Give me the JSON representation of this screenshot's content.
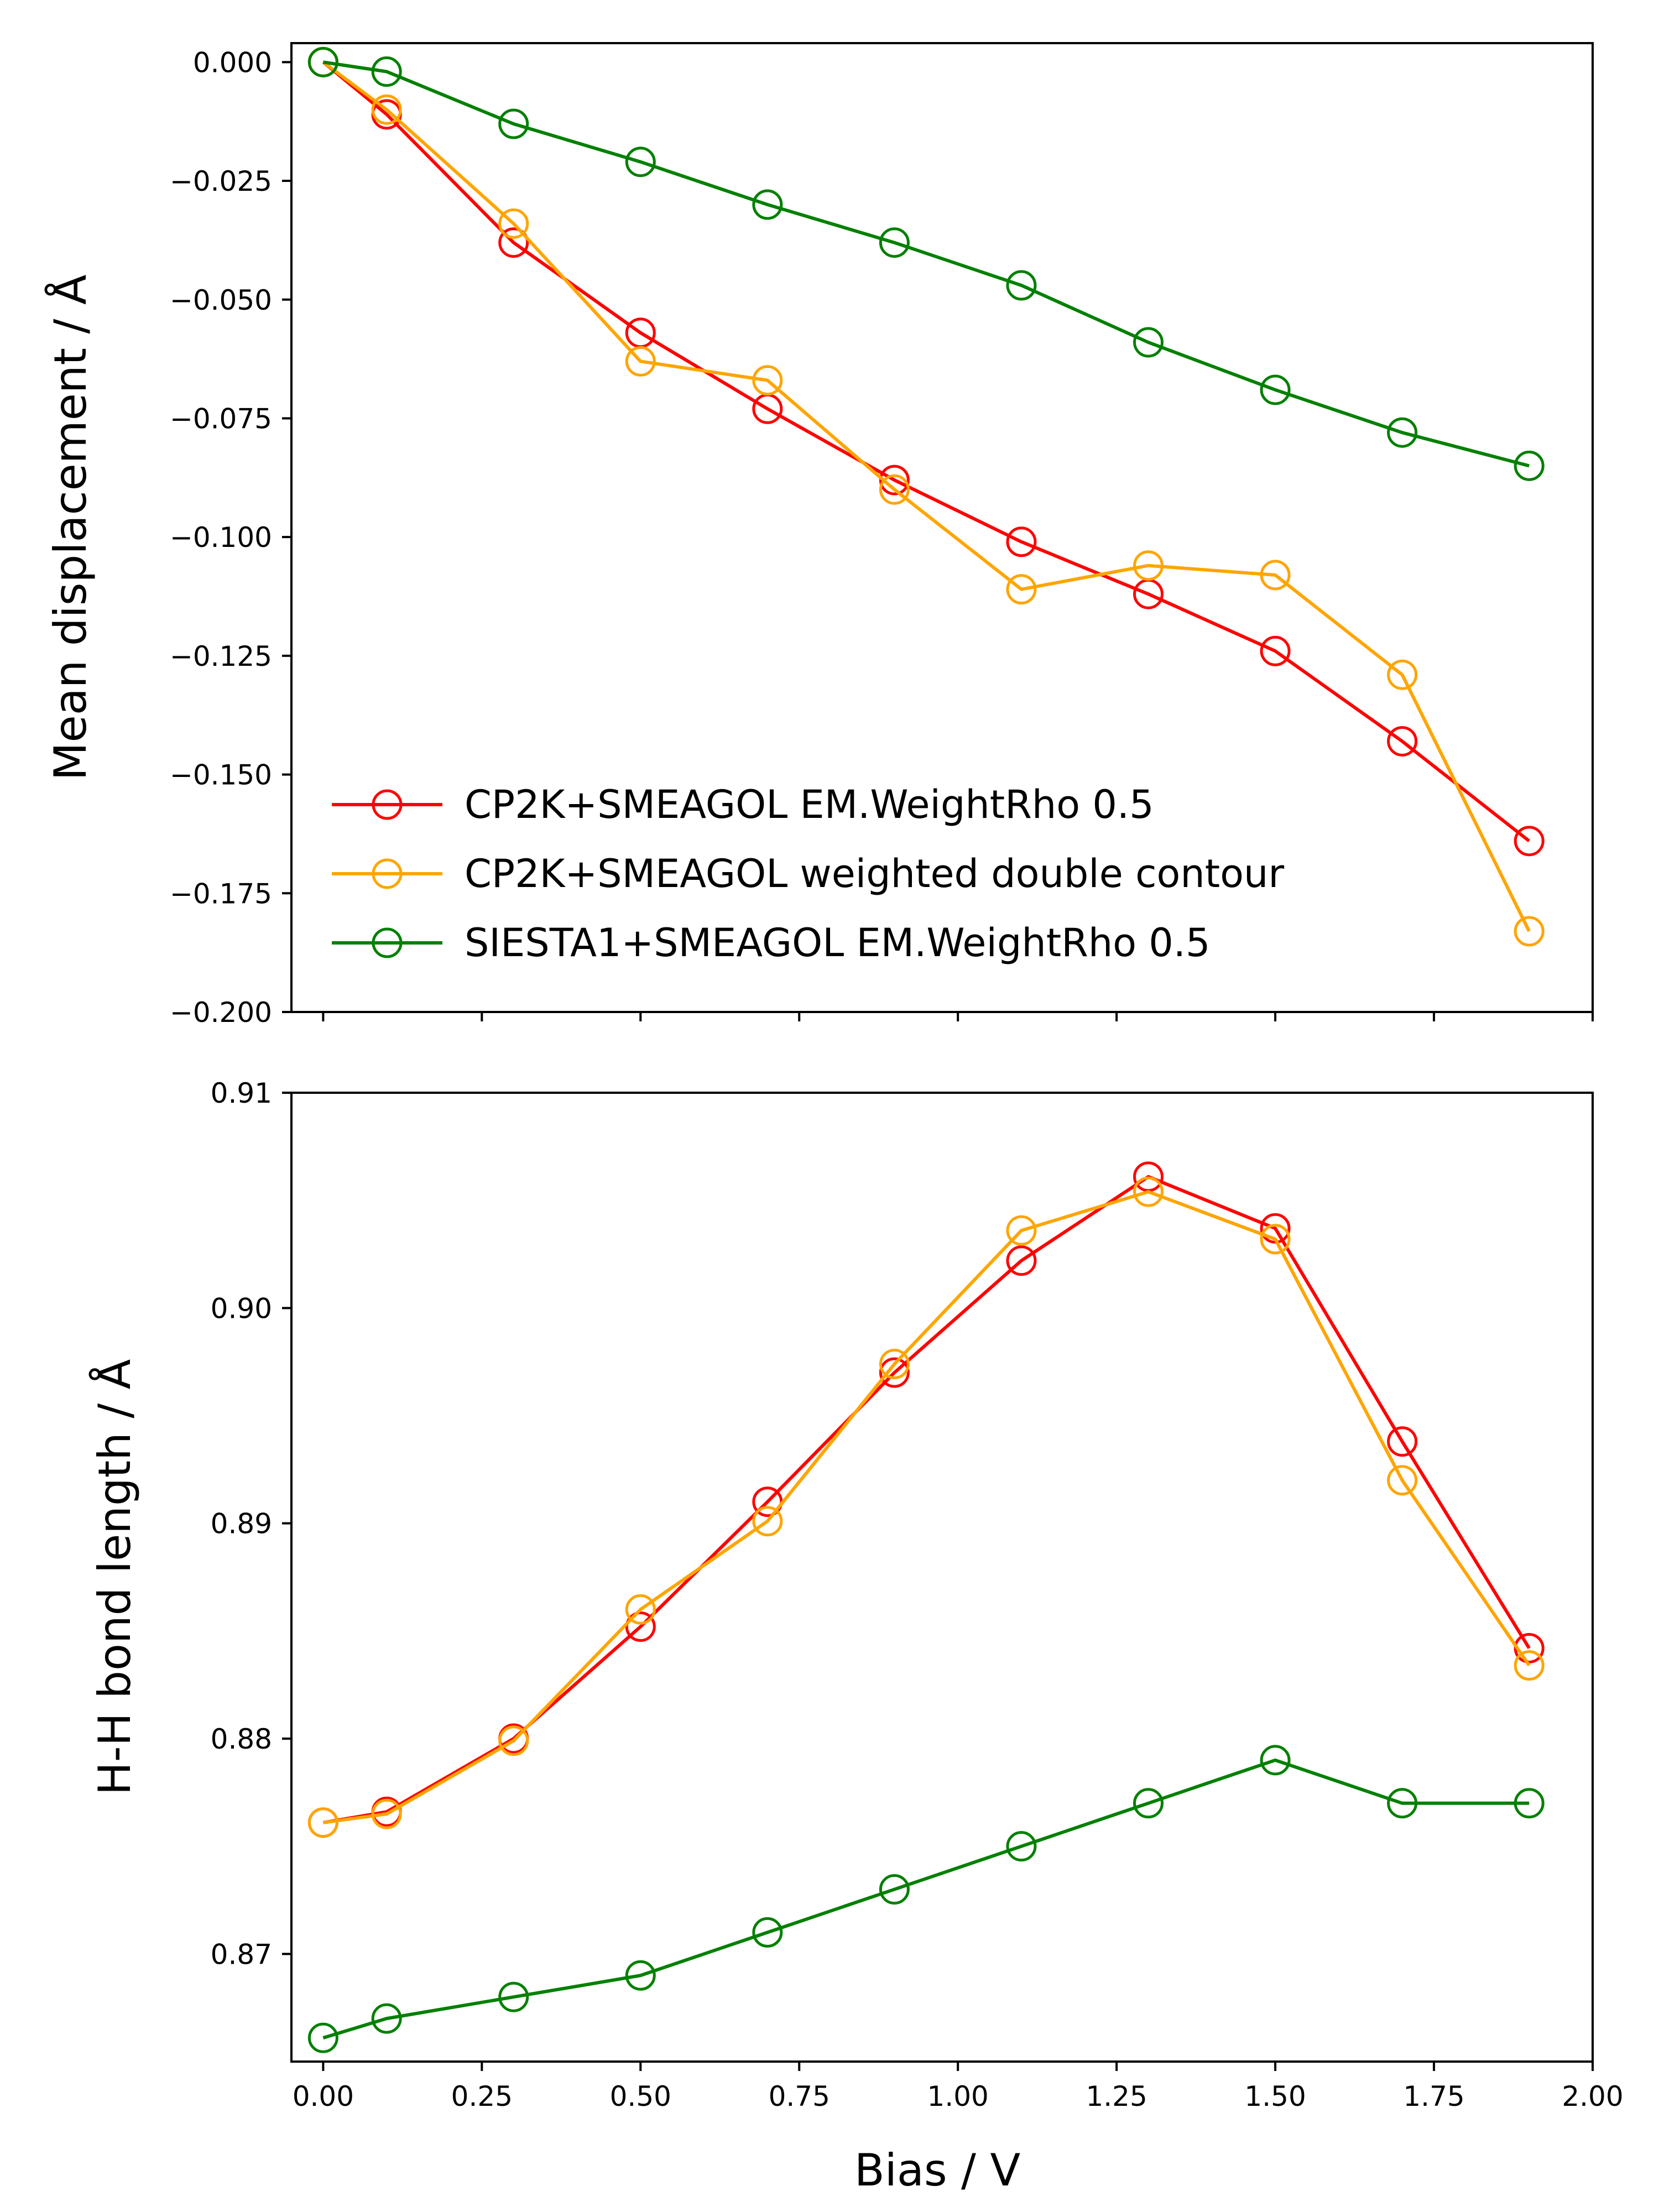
{
  "figure": {
    "xlabel": "Bias / V"
  },
  "colors": {
    "red": "#ff0000",
    "orange": "#ffa500",
    "green": "#008000"
  },
  "chart_data": [
    {
      "type": "line",
      "ylabel": "Mean displacement / Å",
      "xlabel": "",
      "xlim": [
        -0.05,
        2.0
      ],
      "ylim": [
        -0.2,
        0.004
      ],
      "xticks": [
        0.0,
        0.25,
        0.5,
        0.75,
        1.0,
        1.25,
        1.5,
        1.75,
        2.0
      ],
      "xtick_labels": [
        "",
        "",
        "",
        "",
        "",
        "",
        "",
        "",
        ""
      ],
      "yticks": [
        0.0,
        -0.025,
        -0.05,
        -0.075,
        -0.1,
        -0.125,
        -0.15,
        -0.175,
        -0.2
      ],
      "ytick_labels": [
        "0.000",
        "−0.025",
        "−0.050",
        "−0.075",
        "−0.100",
        "−0.125",
        "−0.150",
        "−0.175",
        "−0.200"
      ],
      "grid": false,
      "legend": "lower-left",
      "x": [
        0.0,
        0.1,
        0.3,
        0.5,
        0.7,
        0.9,
        1.1,
        1.3,
        1.5,
        1.7,
        1.9
      ],
      "series": [
        {
          "name": "CP2K+SMEAGOL EM.WeightRho 0.5",
          "color": "#ff0000",
          "marker": "open-circle",
          "values": [
            0.0,
            -0.011,
            -0.038,
            -0.057,
            -0.073,
            -0.088,
            -0.101,
            -0.112,
            -0.124,
            -0.143,
            -0.164
          ]
        },
        {
          "name": "CP2K+SMEAGOL weighted double contour",
          "color": "#ffa500",
          "marker": "open-circle",
          "values": [
            0.0,
            -0.01,
            -0.034,
            -0.063,
            -0.067,
            -0.09,
            -0.111,
            -0.106,
            -0.108,
            -0.129,
            -0.183
          ]
        },
        {
          "name": "SIESTA1+SMEAGOL EM.WeightRho 0.5",
          "color": "#008000",
          "marker": "open-circle",
          "values": [
            0.0,
            -0.002,
            -0.013,
            -0.021,
            -0.03,
            -0.038,
            -0.047,
            -0.059,
            -0.069,
            -0.078,
            -0.085
          ]
        }
      ]
    },
    {
      "type": "line",
      "ylabel": "H-H bond length / Å",
      "xlabel": "Bias / V",
      "xlim": [
        -0.05,
        2.0
      ],
      "ylim": [
        0.865,
        0.91
      ],
      "xticks": [
        0.0,
        0.25,
        0.5,
        0.75,
        1.0,
        1.25,
        1.5,
        1.75,
        2.0
      ],
      "xtick_labels": [
        "0.00",
        "0.25",
        "0.50",
        "0.75",
        "1.00",
        "1.25",
        "1.50",
        "1.75",
        "2.00"
      ],
      "yticks": [
        0.87,
        0.88,
        0.89,
        0.9,
        0.91
      ],
      "ytick_labels": [
        "0.87",
        "0.88",
        "0.89",
        "0.90",
        "0.91"
      ],
      "grid": false,
      "x": [
        0.0,
        0.1,
        0.3,
        0.5,
        0.7,
        0.9,
        1.1,
        1.3,
        1.5,
        1.7,
        1.9
      ],
      "series": [
        {
          "color": "#ff0000",
          "marker": "open-circle",
          "values": [
            0.8761,
            0.8766,
            0.88,
            0.8852,
            0.891,
            0.897,
            0.9022,
            0.9061,
            0.9037,
            0.8938,
            0.8842
          ]
        },
        {
          "color": "#ffa500",
          "marker": "open-circle",
          "values": [
            0.8761,
            0.8765,
            0.8799,
            0.886,
            0.8901,
            0.8974,
            0.9036,
            0.9054,
            0.9032,
            0.892,
            0.8834
          ]
        },
        {
          "color": "#008000",
          "marker": "open-circle",
          "values": [
            0.8661,
            0.867,
            0.868,
            0.869,
            0.871,
            0.873,
            0.875,
            0.877,
            0.879,
            0.877,
            0.877
          ]
        }
      ]
    }
  ]
}
